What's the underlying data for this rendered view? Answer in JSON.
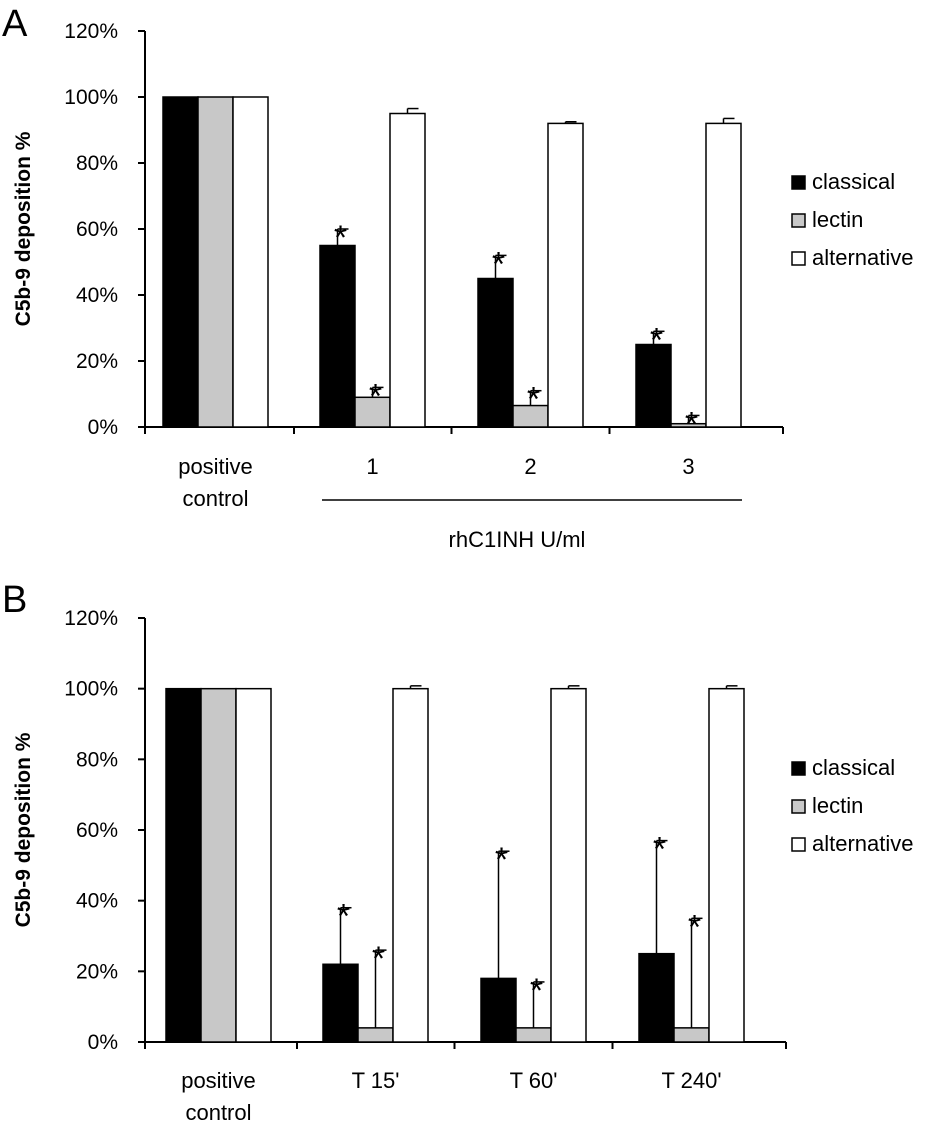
{
  "chart_data": [
    {
      "type": "bar",
      "panel_label": "A",
      "ylabel": "C5b-9 deposition %",
      "xlabel": "rhC1INH U/ml",
      "ylim": [
        0,
        120
      ],
      "yticks": [
        "0%",
        "20%",
        "40%",
        "60%",
        "80%",
        "100%",
        "120%"
      ],
      "categories": [
        [
          "positive",
          "control"
        ],
        [
          "1"
        ],
        [
          "2"
        ],
        [
          "3"
        ]
      ],
      "grid": false,
      "legend_position": "right",
      "series": [
        {
          "name": "classical",
          "color": "#000000",
          "values": [
            100,
            55,
            45,
            25
          ],
          "errors": [
            0,
            5,
            7,
            4
          ],
          "significant": [
            false,
            true,
            true,
            true
          ]
        },
        {
          "name": "lectin",
          "color": "#c8c8c8",
          "values": [
            100,
            9,
            6.5,
            1
          ],
          "errors": [
            0,
            3,
            4.5,
            2.5
          ],
          "significant": [
            false,
            true,
            true,
            true
          ]
        },
        {
          "name": "alternative",
          "color": "#ffffff",
          "values": [
            100,
            95,
            92,
            92
          ],
          "errors": [
            0,
            1.5,
            0.5,
            1.5
          ],
          "significant": [
            false,
            false,
            false,
            false
          ]
        }
      ],
      "significance_marker": "*"
    },
    {
      "type": "bar",
      "panel_label": "B",
      "ylabel": "C5b-9 deposition %",
      "xlabel": "",
      "ylim": [
        0,
        120
      ],
      "yticks": [
        "0%",
        "20%",
        "40%",
        "60%",
        "80%",
        "100%",
        "120%"
      ],
      "categories": [
        [
          "positive",
          "control"
        ],
        [
          "T 15'"
        ],
        [
          "T 60'"
        ],
        [
          "T 240'"
        ]
      ],
      "grid": false,
      "legend_position": "right",
      "series": [
        {
          "name": "classical",
          "color": "#000000",
          "values": [
            100,
            22,
            18,
            25
          ],
          "errors": [
            0,
            16,
            36,
            32
          ],
          "significant": [
            false,
            true,
            true,
            true
          ]
        },
        {
          "name": "lectin",
          "color": "#c8c8c8",
          "values": [
            100,
            4,
            4,
            4
          ],
          "errors": [
            0,
            22,
            13,
            31
          ],
          "significant": [
            false,
            true,
            true,
            true
          ]
        },
        {
          "name": "alternative",
          "color": "#ffffff",
          "values": [
            100,
            100,
            100,
            100
          ],
          "errors": [
            0,
            0.8,
            0.8,
            0.8
          ],
          "significant": [
            false,
            false,
            false,
            false
          ]
        }
      ],
      "significance_marker": "*"
    }
  ]
}
